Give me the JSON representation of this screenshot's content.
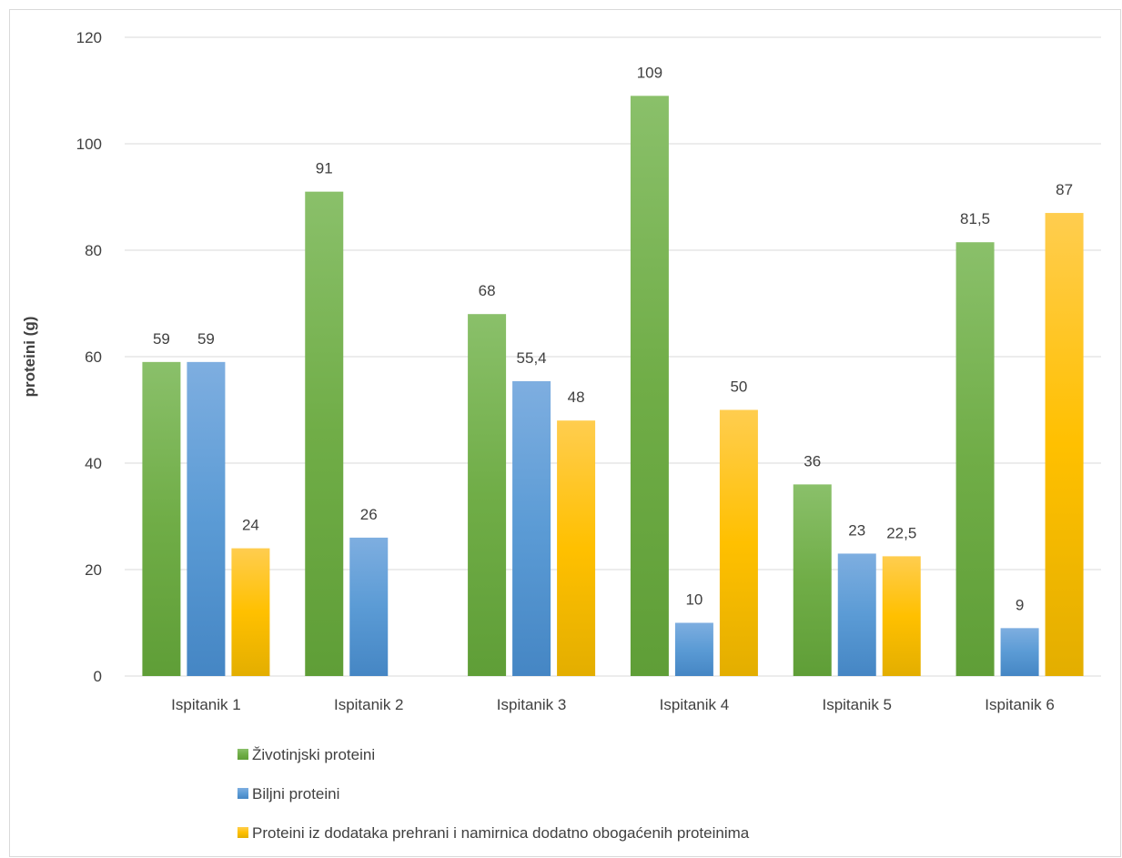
{
  "chart_data": {
    "type": "bar",
    "title": "",
    "xlabel": "",
    "ylabel": "proteini (g)",
    "ylim": [
      0,
      120
    ],
    "yticks": [
      0,
      20,
      40,
      60,
      80,
      100,
      120
    ],
    "grid": true,
    "legend_position": "bottom-left",
    "categories": [
      "Ispitanik 1",
      "Ispitanik 2",
      "Ispitanik 3",
      "Ispitanik 4",
      "Ispitanik 5",
      "Ispitanik 6"
    ],
    "series": [
      {
        "name": "Životinjski proteini",
        "color": "#70ad47",
        "values": [
          59,
          91,
          68,
          109,
          36,
          81.5
        ],
        "labels": [
          "59",
          "91",
          "68",
          "109",
          "36",
          "81,5"
        ]
      },
      {
        "name": "Biljni proteini",
        "color": "#5b9bd5",
        "values": [
          59,
          26,
          55.4,
          10,
          23,
          9
        ],
        "labels": [
          "59",
          "26",
          "55,4",
          "10",
          "23",
          "9"
        ]
      },
      {
        "name": "Proteini iz dodataka prehrani i namirnica dodatno obogaćenih proteinima",
        "color": "#ffc000",
        "values": [
          24,
          null,
          48,
          50,
          22.5,
          87
        ],
        "labels": [
          "24",
          null,
          "48",
          "50",
          "22,5",
          "87"
        ]
      }
    ]
  }
}
